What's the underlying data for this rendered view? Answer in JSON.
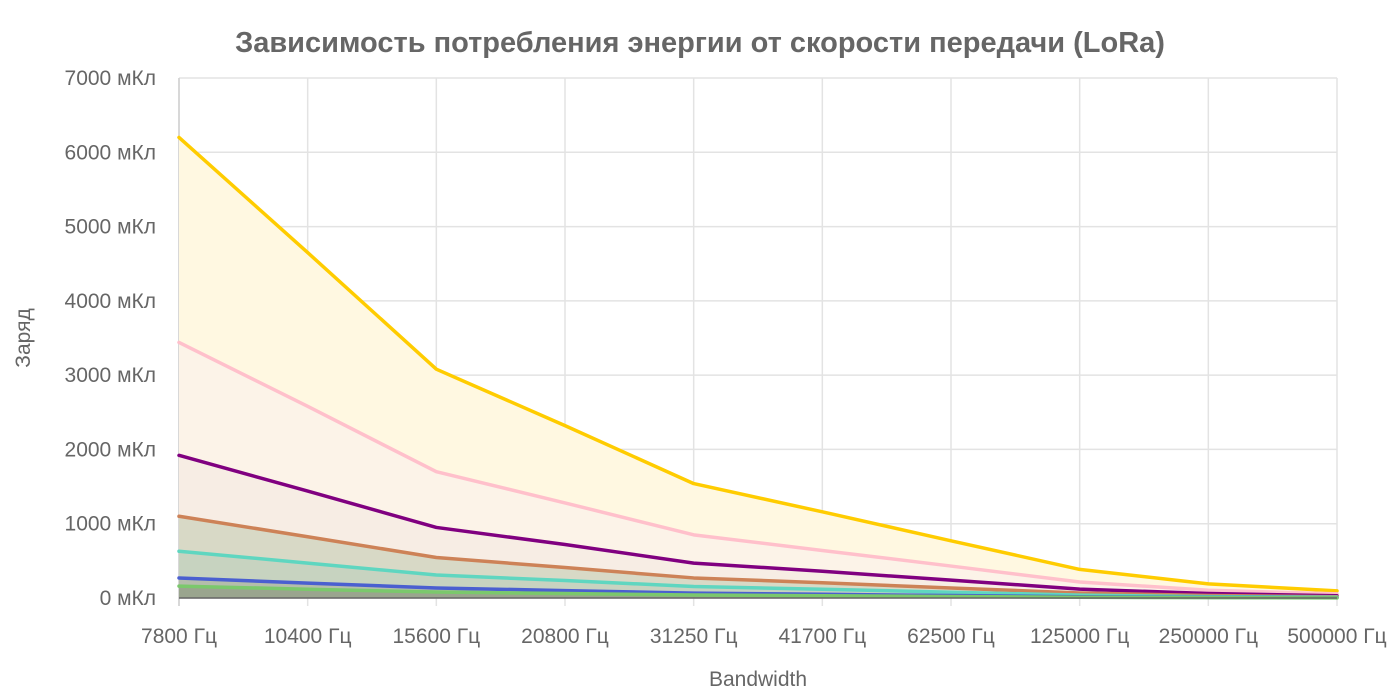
{
  "chart_data": {
    "type": "area",
    "title": "Зависимость потребления энергии от скорости передачи (LoRa)",
    "xlabel": "Bandwidth",
    "ylabel": "Заряд",
    "categories": [
      "7800 Гц",
      "10400 Гц",
      "15600 Гц",
      "20800 Гц",
      "31250 Гц",
      "41700 Гц",
      "62500 Гц",
      "125000 Гц",
      "250000 Гц",
      "500000 Гц"
    ],
    "yticks": [
      "0 мКл",
      "1000 мКл",
      "2000 мКл",
      "3000 мКл",
      "4000 мКл",
      "5000 мКл",
      "6000 мКл",
      "7000 мКл"
    ],
    "ylim": [
      0,
      7000
    ],
    "grid": true,
    "series": [
      {
        "color": "#ffcc00",
        "fill": "#fff8e1",
        "values": [
          6200,
          4650,
          3080,
          2320,
          1540,
          1160,
          770,
          385,
          190,
          96
        ]
      },
      {
        "color": "#ffc0cb",
        "fill": "#fcf3e8",
        "values": [
          3440,
          2580,
          1700,
          1280,
          850,
          640,
          430,
          215,
          105,
          55
        ]
      },
      {
        "color": "#800080",
        "fill": "#f7ede4",
        "values": [
          1920,
          1440,
          950,
          720,
          470,
          360,
          240,
          120,
          60,
          30
        ]
      },
      {
        "color": "#cd8257",
        "fill": "#d8d9c6",
        "values": [
          1100,
          825,
          545,
          410,
          270,
          205,
          135,
          68,
          34,
          17
        ]
      },
      {
        "color": "#5fd6c0",
        "fill": "#c7d3c0",
        "values": [
          630,
          470,
          310,
          235,
          155,
          118,
          78,
          39,
          19,
          10
        ]
      },
      {
        "color": "#4a5fd0",
        "fill": "#b4bdab",
        "values": [
          270,
          200,
          135,
          100,
          66,
          50,
          33,
          17,
          8,
          4
        ]
      },
      {
        "color": "#7bc86c",
        "fill": "#9aa58e",
        "values": [
          160,
          118,
          80,
          60,
          40,
          30,
          20,
          10,
          5,
          2
        ]
      }
    ]
  }
}
